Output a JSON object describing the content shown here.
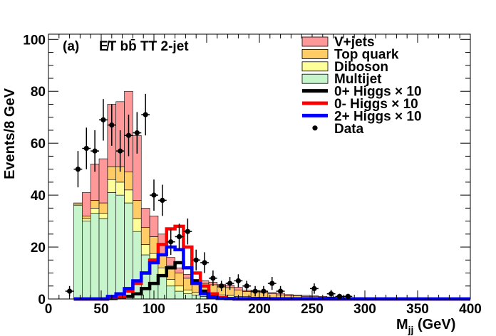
{
  "chart_data": {
    "type": "stacked-histogram",
    "panel_label": "(a)",
    "channel_label": "E̸T bb̄ TT 2-jet",
    "xlabel": "M_jj (GeV)",
    "xlabel_main": "M",
    "xlabel_sub": "jj",
    "xlabel_unit": " (GeV)",
    "ylabel": "Events/8 GeV",
    "xlim": [
      0,
      400
    ],
    "ylim": [
      0,
      102
    ],
    "xticks": [
      0,
      50,
      100,
      150,
      200,
      250,
      300,
      350,
      400
    ],
    "yticks": [
      0,
      20,
      40,
      60,
      80,
      100
    ],
    "bin_width": 8,
    "bin_edges_start": 24,
    "backgrounds": [
      {
        "name": "Multijet",
        "color": "#c6f5cc",
        "values": [
          36,
          30,
          33,
          31,
          41,
          40,
          37,
          26,
          17,
          14,
          9,
          5,
          3,
          2,
          1.5,
          1,
          1,
          0.8,
          0.6,
          0.5,
          0.4,
          0.3,
          0.3,
          0.2,
          0.2,
          0.1,
          0.1,
          0.1,
          0.1,
          0.1,
          0.1,
          0.1,
          0.1,
          0.1
        ]
      },
      {
        "name": "Diboson",
        "color": "#ffff99",
        "values": [
          0.5,
          1,
          2,
          2,
          5,
          5,
          5,
          5,
          4,
          3.5,
          3,
          2.5,
          2,
          1.5,
          1,
          1,
          1,
          0.8,
          0.8,
          0.5,
          0.5,
          0.4,
          0.4,
          0.3,
          0.2,
          0.2,
          0.2,
          0.1,
          0.1,
          0.1,
          0.1,
          0.1,
          0.1,
          0.1
        ]
      },
      {
        "name": "Top quark",
        "color": "#ffcc66",
        "values": [
          0.5,
          1,
          3,
          4,
          5,
          6,
          7,
          7,
          6.5,
          6.5,
          5.5,
          5.5,
          5,
          4.5,
          4,
          4,
          3.5,
          3,
          3,
          2.5,
          2,
          2,
          1.8,
          1.5,
          1.2,
          1,
          1,
          0.7,
          0.7,
          0.5,
          0.5,
          0.4,
          0.3,
          0.3
        ]
      },
      {
        "name": "V+jets",
        "color": "#ff9999",
        "values": [
          0,
          9,
          14,
          17,
          24,
          25,
          31,
          25,
          7.5,
          8,
          7.5,
          3,
          2,
          1.5,
          1,
          1,
          1,
          1,
          1,
          1,
          0.5,
          0.6,
          0.5,
          0.5,
          0.6,
          0.4,
          0.2,
          0.5,
          0.3,
          0.3,
          0.1,
          0.1,
          0.1,
          0.1
        ]
      }
    ],
    "signals": [
      {
        "name": "0+ Higgs",
        "scale": "× 10",
        "color": "#000000",
        "values": [
          0,
          0,
          0,
          0,
          0.2,
          0.5,
          1,
          2,
          4,
          6,
          9,
          12,
          14,
          12,
          7,
          3,
          1,
          0.5,
          0.2,
          0.1
        ]
      },
      {
        "name": "0- Higgs",
        "scale": "× 10",
        "color": "#ff0000",
        "values": [
          0,
          0,
          0,
          0,
          0.5,
          1,
          3,
          6,
          10,
          15,
          21,
          27,
          28,
          20,
          10,
          5,
          2,
          0.5,
          0.2,
          0
        ]
      },
      {
        "name": "2+ Higgs",
        "scale": "× 10",
        "color": "#0000ff",
        "values": [
          0,
          0,
          0,
          0,
          1,
          2,
          4,
          7,
          10,
          14,
          17,
          20,
          19,
          12,
          6,
          2,
          0.5,
          0.2,
          0.1,
          0
        ]
      }
    ],
    "data_points": [
      {
        "x": 20,
        "y": 3,
        "err": 2
      },
      {
        "x": 28,
        "y": 50,
        "err": 7
      },
      {
        "x": 36,
        "y": 58,
        "err": 8
      },
      {
        "x": 44,
        "y": 57,
        "err": 8
      },
      {
        "x": 52,
        "y": 69,
        "err": 8
      },
      {
        "x": 60,
        "y": 67,
        "err": 8
      },
      {
        "x": 68,
        "y": 57,
        "err": 8
      },
      {
        "x": 76,
        "y": 63,
        "err": 8
      },
      {
        "x": 84,
        "y": 64,
        "err": 8
      },
      {
        "x": 92,
        "y": 71,
        "err": 8
      },
      {
        "x": 100,
        "y": 40,
        "err": 6
      },
      {
        "x": 108,
        "y": 38,
        "err": 6
      },
      {
        "x": 116,
        "y": 22,
        "err": 5
      },
      {
        "x": 124,
        "y": 24,
        "err": 5
      },
      {
        "x": 132,
        "y": 26,
        "err": 5
      },
      {
        "x": 140,
        "y": 15,
        "err": 4
      },
      {
        "x": 148,
        "y": 14,
        "err": 4
      },
      {
        "x": 156,
        "y": 8,
        "err": 3
      },
      {
        "x": 164,
        "y": 5,
        "err": 2
      },
      {
        "x": 172,
        "y": 6,
        "err": 2.5
      },
      {
        "x": 180,
        "y": 7,
        "err": 2.5
      },
      {
        "x": 188,
        "y": 5,
        "err": 2
      },
      {
        "x": 196,
        "y": 3,
        "err": 2
      },
      {
        "x": 204,
        "y": 3,
        "err": 2
      },
      {
        "x": 212,
        "y": 6,
        "err": 2.5
      },
      {
        "x": 220,
        "y": 3,
        "err": 2
      },
      {
        "x": 252,
        "y": 4,
        "err": 2
      },
      {
        "x": 268,
        "y": 2,
        "err": 1.5
      },
      {
        "x": 276,
        "y": 1,
        "err": 1
      },
      {
        "x": 284,
        "y": 1,
        "err": 1
      }
    ],
    "legend": [
      {
        "label": "V+jets",
        "kind": "box",
        "color": "#ff9999"
      },
      {
        "label": "Top quark",
        "kind": "box",
        "color": "#ffcc66"
      },
      {
        "label": "Diboson",
        "kind": "box",
        "color": "#ffff99"
      },
      {
        "label": "Multijet",
        "kind": "box",
        "color": "#c6f5cc"
      },
      {
        "label": "0+ Higgs × 10",
        "kind": "line",
        "color": "#000000"
      },
      {
        "label": "0- Higgs × 10",
        "kind": "line",
        "color": "#ff0000"
      },
      {
        "label": "2+ Higgs × 10",
        "kind": "line",
        "color": "#0000ff"
      },
      {
        "label": "Data",
        "kind": "marker",
        "color": "#000000"
      }
    ],
    "legend_position": "top-right"
  }
}
